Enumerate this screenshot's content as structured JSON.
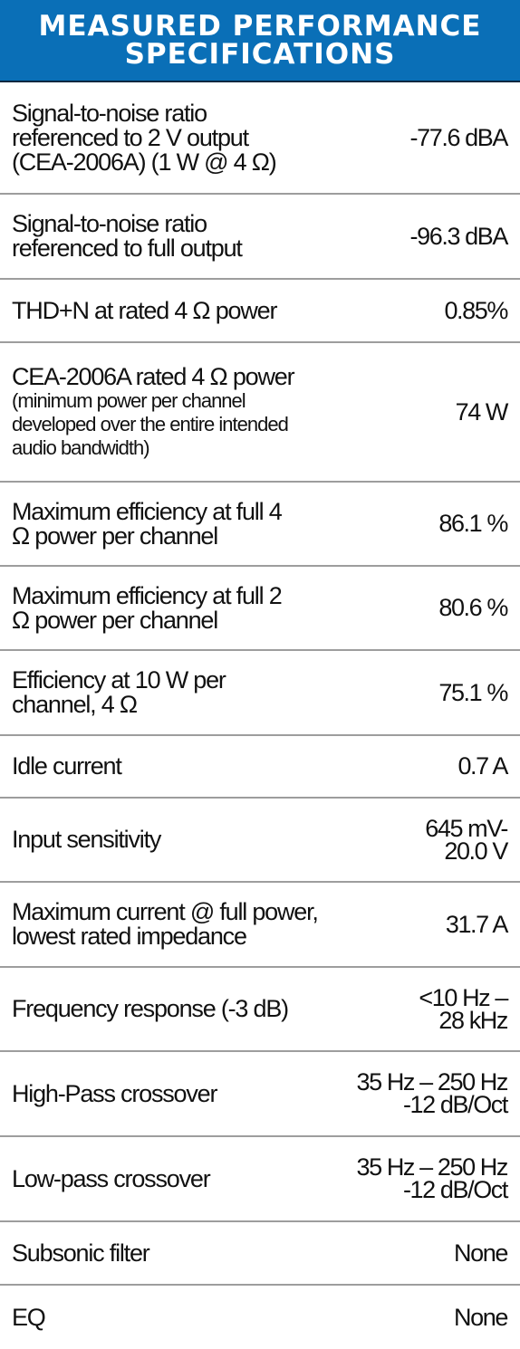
{
  "header": {
    "title_line1": "MEASURED PERFORMANCE",
    "title_line2": "SPECIFICATIONS"
  },
  "rows": [
    {
      "label": [
        "Signal-to-noise ratio",
        "referenced to 2 V output",
        "(CEA-2006A)  (1 W @ 4 Ω)"
      ],
      "value": [
        "-77.6 dBA"
      ]
    },
    {
      "label": [
        "Signal-to-noise ratio",
        "referenced to full output"
      ],
      "value": [
        "-96.3 dBA"
      ]
    },
    {
      "label": [
        "THD+N at rated 4 Ω power"
      ],
      "value": [
        "0.85%"
      ]
    },
    {
      "label": [
        "CEA-2006A rated 4 Ω power"
      ],
      "note": [
        "(minimum power per channel",
        "developed over the entire intended",
        "audio bandwidth)"
      ],
      "value": [
        "74 W"
      ]
    },
    {
      "label": [
        "Maximum efficiency at full 4",
        "Ω power per channel"
      ],
      "value": [
        "86.1 %"
      ]
    },
    {
      "label": [
        "Maximum efficiency at full 2",
        "Ω power per channel"
      ],
      "value": [
        "80.6 %"
      ]
    },
    {
      "label": [
        "Efficiency at  10 W per",
        "channel, 4 Ω"
      ],
      "value": [
        "75.1 %"
      ]
    },
    {
      "label": [
        "Idle current"
      ],
      "value": [
        "0.7 A"
      ]
    },
    {
      "label": [
        "Input sensitivity"
      ],
      "value": [
        "645 mV-",
        "20.0 V"
      ]
    },
    {
      "label": [
        "Maximum current @ full power,",
        "lowest rated impedance"
      ],
      "value": [
        "31.7 A"
      ]
    },
    {
      "label": [
        "Frequency response (-3 dB)"
      ],
      "value": [
        "<10 Hz –",
        "28 kHz"
      ]
    },
    {
      "label": [
        "High-Pass crossover"
      ],
      "value": [
        "35 Hz – 250 Hz",
        "-12 dB/Oct"
      ]
    },
    {
      "label": [
        "Low-pass crossover"
      ],
      "value": [
        "35 Hz – 250 Hz",
        "-12 dB/Oct"
      ]
    },
    {
      "label": [
        "Subsonic filter"
      ],
      "value": [
        "None"
      ]
    },
    {
      "label": [
        "EQ"
      ],
      "value": [
        "None"
      ]
    }
  ]
}
